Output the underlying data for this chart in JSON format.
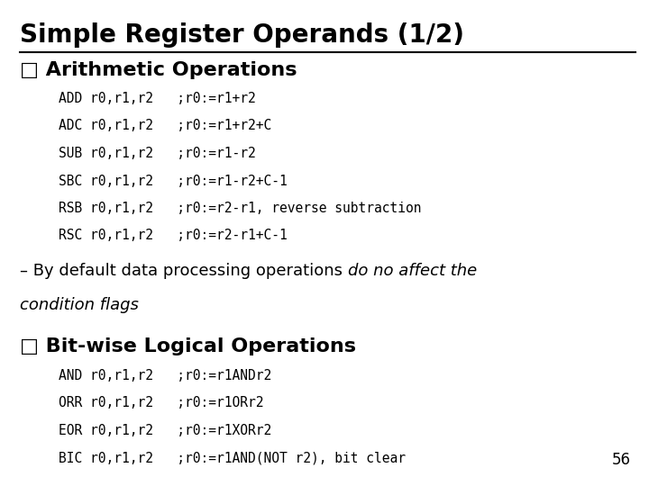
{
  "title": "Simple Register Operands (1/2)",
  "bg_color": "#ffffff",
  "title_color": "#000000",
  "section1_header": "q Arithmetic Operations",
  "section1_lines": [
    "ADD r0,r1,r2   ;r0:=r1+r2",
    "ADC r0,r1,r2   ;r0:=r1+r2+C",
    "SUB r0,r1,r2   ;r0:=r1-r2",
    "SBC r0,r1,r2   ;r0:=r1-r2+C-1",
    "RSB r0,r1,r2   ;r0:=r2-r1, reverse subtraction",
    "RSC r0,r1,r2   ;r0:=r2-r1+C-1"
  ],
  "note_plain": "– By default data processing operations ",
  "note_italic_part1": "do no affect the",
  "note_italic_part2": "condition flags",
  "section2_header": "q Bit-wise Logical Operations",
  "section2_lines": [
    "AND r0,r1,r2   ;r0:=r1ANDr2",
    "ORR r0,r1,r2   ;r0:=r1ORr2",
    "EOR r0,r1,r2   ;r0:=r1XORr2",
    "BIC r0,r1,r2   ;r0:=r1AND(NOT r2), bit clear"
  ],
  "page_number": "56",
  "title_fontsize": 20,
  "section_header_fontsize": 16,
  "code_fontsize": 10.5,
  "note_fontsize": 13,
  "page_fontsize": 12
}
